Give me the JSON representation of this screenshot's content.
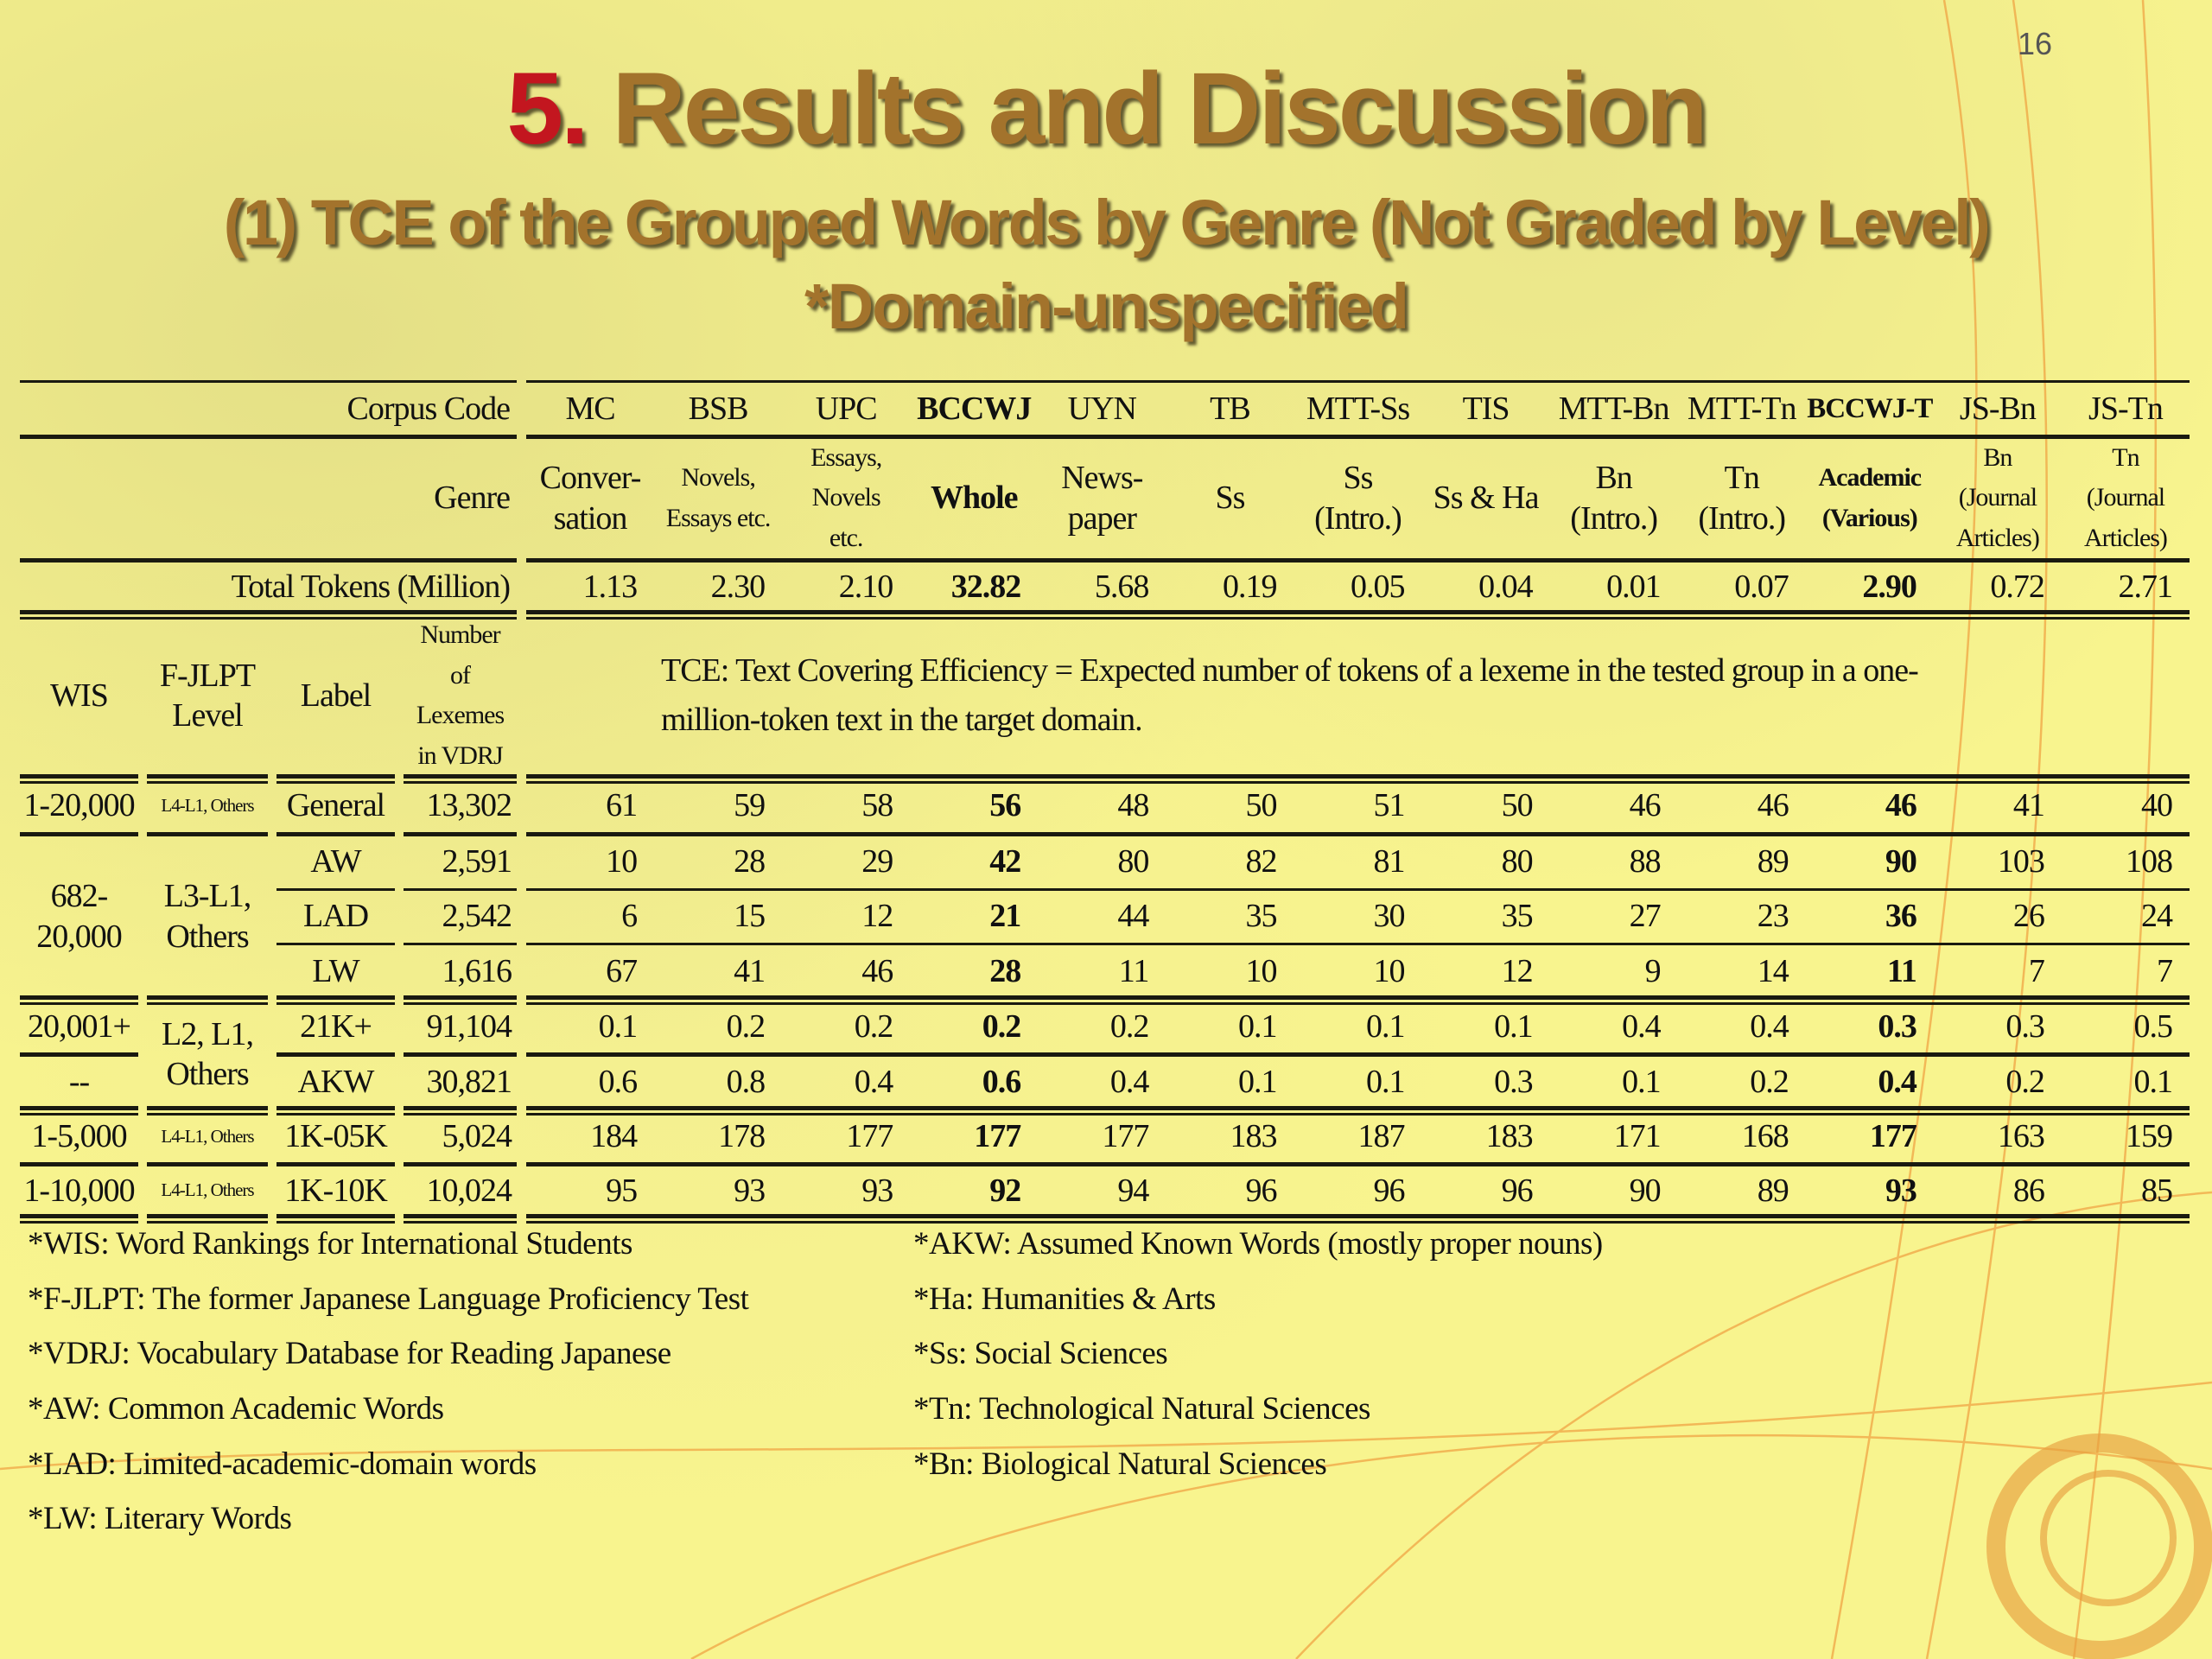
{
  "slide": {
    "page_number": "16",
    "title_number": "5.",
    "title_text": " Results and Discussion",
    "subtitle": "(1) TCE of the Grouped Words by Genre (Not Graded by Level)",
    "subtitle2": "*Domain-unspecified",
    "colors": {
      "background": "#f8f48e",
      "title": "#a3732c",
      "title_number": "#c3161f",
      "decor": "#f0a040"
    }
  },
  "table": {
    "row_labels": {
      "code": "Corpus Code",
      "genre": "Genre",
      "tokens": "Total Tokens (Million)"
    },
    "columns": [
      {
        "code": "MC",
        "genre": "Conver-\nsation",
        "tokens": "1.13",
        "bold": false
      },
      {
        "code": "BSB",
        "genre": "Novels,\nEssays etc.",
        "tokens": "2.30",
        "bold": false,
        "small": true
      },
      {
        "code": "UPC",
        "genre": "Essays,\nNovels\netc.",
        "tokens": "2.10",
        "bold": false,
        "small": true
      },
      {
        "code": "BCCWJ",
        "genre": "Whole",
        "tokens": "32.82",
        "bold": true
      },
      {
        "code": "UYN",
        "genre": "News-\npaper",
        "tokens": "5.68",
        "bold": false
      },
      {
        "code": "TB",
        "genre": "Ss",
        "tokens": "0.19",
        "bold": false
      },
      {
        "code": "MTT-Ss",
        "genre": "Ss\n(Intro.)",
        "tokens": "0.05",
        "bold": false
      },
      {
        "code": "TIS",
        "genre": "Ss & Ha",
        "tokens": "0.04",
        "bold": false
      },
      {
        "code": "MTT-Bn",
        "genre": "Bn\n(Intro.)",
        "tokens": "0.01",
        "bold": false
      },
      {
        "code": "MTT-Tn",
        "genre": "Tn\n(Intro.)",
        "tokens": "0.07",
        "bold": false
      },
      {
        "code": "BCCWJ-T",
        "genre": "Academic\n(Various)",
        "tokens": "2.90",
        "bold": true,
        "small": true
      },
      {
        "code": "JS-Bn",
        "genre": "Bn\n(Journal\nArticles)",
        "tokens": "0.72",
        "bold": false,
        "small": true
      },
      {
        "code": "JS-Tn",
        "genre": "Tn\n(Journal\nArticles)",
        "tokens": "2.71",
        "bold": false,
        "small": true
      }
    ],
    "sub_headers": {
      "wis": "WIS",
      "jlpt": "F-JLPT\nLevel",
      "label": "Label",
      "count": "Number\nof\nLexemes\nin VDRJ"
    },
    "note": "TCE: Text Covering Efficiency = Expected number of tokens of a lexeme in the tested group in a one-\nmillion-token text in the target domain.",
    "wis": [
      {
        "text": "1-20,000",
        "span": 1
      },
      {
        "text": "682-\n20,000",
        "span": 3
      },
      {
        "text": "20,001+",
        "span": 1
      },
      {
        "text": "--",
        "span": 1
      },
      {
        "text": "1-5,000",
        "span": 1
      },
      {
        "text": "1-10,000",
        "span": 1
      }
    ],
    "jlpt": [
      {
        "text": "L4-L1, Others",
        "span": 1,
        "small": true
      },
      {
        "text": "L3-L1,\nOthers",
        "span": 3
      },
      {
        "text": "L2, L1,\nOthers",
        "span": 2
      },
      {
        "text": "L4-L1, Others",
        "span": 1,
        "small": true
      },
      {
        "text": "L4-L1, Others",
        "span": 1,
        "small": true
      }
    ],
    "rows": [
      {
        "label": "General",
        "count": "13,302",
        "values": [
          "61",
          "59",
          "58",
          "56",
          "48",
          "50",
          "51",
          "50",
          "46",
          "46",
          "46",
          "41",
          "40"
        ]
      },
      {
        "label": "AW",
        "count": "2,591",
        "values": [
          "10",
          "28",
          "29",
          "42",
          "80",
          "82",
          "81",
          "80",
          "88",
          "89",
          "90",
          "103",
          "108"
        ]
      },
      {
        "label": "LAD",
        "count": "2,542",
        "values": [
          "6",
          "15",
          "12",
          "21",
          "44",
          "35",
          "30",
          "35",
          "27",
          "23",
          "36",
          "26",
          "24"
        ]
      },
      {
        "label": "LW",
        "count": "1,616",
        "values": [
          "67",
          "41",
          "46",
          "28",
          "11",
          "10",
          "10",
          "12",
          "9",
          "14",
          "11",
          "7",
          "7"
        ]
      },
      {
        "label": "21K+",
        "count": "91,104",
        "values": [
          "0.1",
          "0.2",
          "0.2",
          "0.2",
          "0.2",
          "0.1",
          "0.1",
          "0.1",
          "0.4",
          "0.4",
          "0.3",
          "0.3",
          "0.5"
        ]
      },
      {
        "label": "AKW",
        "count": "30,821",
        "values": [
          "0.6",
          "0.8",
          "0.4",
          "0.6",
          "0.4",
          "0.1",
          "0.1",
          "0.3",
          "0.1",
          "0.2",
          "0.4",
          "0.2",
          "0.1"
        ]
      },
      {
        "label": "1K-05K",
        "count": "5,024",
        "values": [
          "184",
          "178",
          "177",
          "177",
          "177",
          "183",
          "187",
          "183",
          "171",
          "168",
          "177",
          "163",
          "159"
        ]
      },
      {
        "label": "1K-10K",
        "count": "10,024",
        "values": [
          "95",
          "93",
          "93",
          "92",
          "94",
          "96",
          "96",
          "96",
          "90",
          "89",
          "93",
          "86",
          "85"
        ]
      }
    ]
  },
  "footnotes": {
    "left": [
      "*WIS: Word Rankings for International Students",
      "*F-JLPT: The former Japanese Language Proficiency Test",
      "*VDRJ: Vocabulary Database for Reading Japanese",
      "*AW: Common Academic Words",
      "*LAD: Limited-academic-domain words",
      "*LW: Literary Words"
    ],
    "right": [
      "*AKW: Assumed Known Words (mostly proper nouns)",
      "*Ha: Humanities & Arts",
      "*Ss: Social Sciences",
      "*Tn: Technological Natural Sciences",
      "*Bn: Biological Natural Sciences"
    ]
  }
}
